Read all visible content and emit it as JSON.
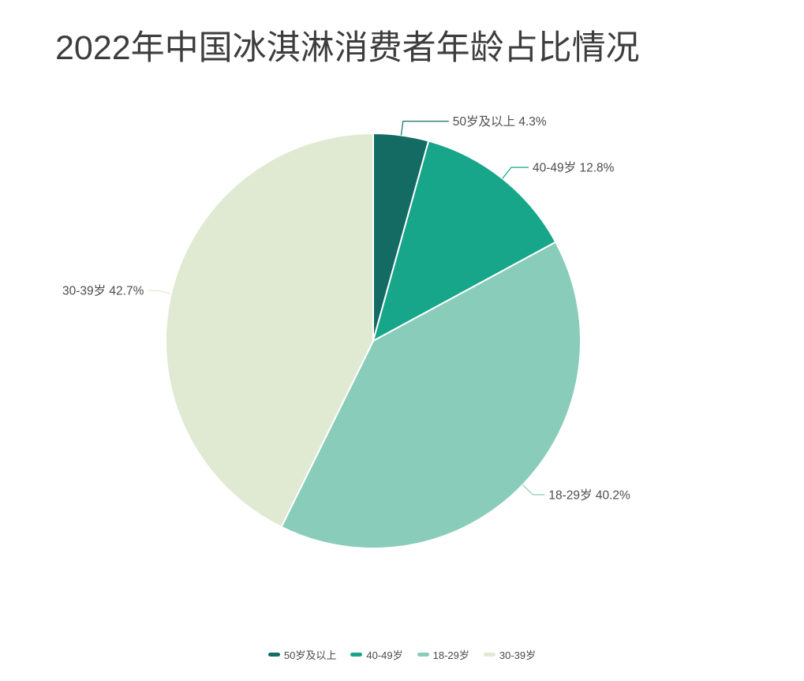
{
  "chart_data": {
    "type": "pie",
    "title": "2022年中国冰淇淋消费者年龄占比情况",
    "unit": "%",
    "start_angle_deg": 0,
    "direction": "clockwise",
    "legend_position": "bottom",
    "background_color": "#ffffff",
    "title_color": "#3d3d3d",
    "label_text_color": "#4d4d4d",
    "slices": [
      {
        "key": "age-50-plus",
        "label": "50岁及以上",
        "value": 4.3,
        "display": "50岁及以上 4.3%",
        "color": "#136b64"
      },
      {
        "key": "age-40-49",
        "label": "40-49岁",
        "value": 12.8,
        "display": "40-49岁 12.8%",
        "color": "#17a689"
      },
      {
        "key": "age-18-29",
        "label": "18-29岁",
        "value": 40.2,
        "display": "18-29岁 40.2%",
        "color": "#8accba"
      },
      {
        "key": "age-30-39",
        "label": "30-39岁",
        "value": 42.7,
        "display": "30-39岁 42.7%",
        "color": "#e0e9d2"
      }
    ],
    "legend": [
      "50岁及以上",
      "40-49岁",
      "18-29岁",
      "30-39岁"
    ]
  }
}
